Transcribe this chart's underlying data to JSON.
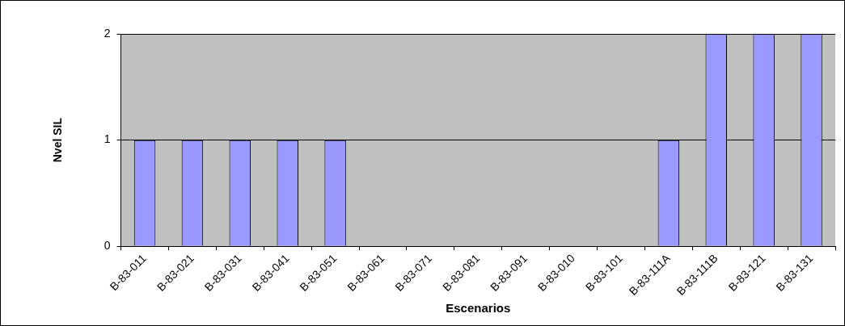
{
  "chart_data": {
    "type": "bar",
    "xlabel": "Escenarios",
    "ylabel": "Nvel SIL",
    "categories": [
      "B-83-011",
      "B-83-021",
      "B-83-031",
      "B-83-041",
      "B-83-051",
      "B-83-061",
      "B-83-071",
      "B-83-081",
      "B-83-091",
      "B-83-010",
      "B-83-101",
      "B-83-111A",
      "B-83-111B",
      "B-83-121",
      "B-83-131"
    ],
    "values": [
      1,
      1,
      1,
      1,
      1,
      0,
      0,
      0,
      0,
      0,
      0,
      1,
      2,
      2,
      2
    ],
    "color": "#9999ff",
    "ylim": [
      0,
      2
    ],
    "yticks": [
      0,
      1,
      2
    ],
    "grid": "y",
    "legend": false
  }
}
